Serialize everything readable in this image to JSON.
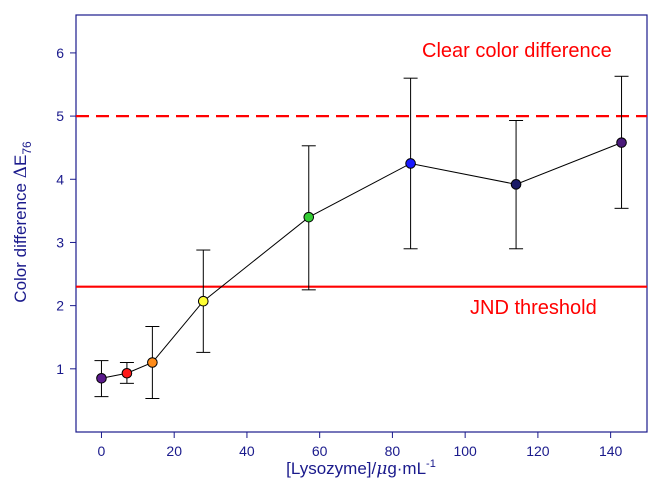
{
  "chart_data": {
    "type": "scatter",
    "xlabel": {
      "main": "[Lysozyme]/",
      "mu": "μ",
      "rest": "g·mL",
      "sup": "-1"
    },
    "ylabel": {
      "main": "Color difference ",
      "delta": "Δ",
      "E": "E",
      "sub": "76"
    },
    "xlim": [
      -7,
      150
    ],
    "ylim": [
      0,
      6.6
    ],
    "x_ticks": [
      0,
      20,
      40,
      60,
      80,
      100,
      120,
      140
    ],
    "y_ticks": [
      1,
      2,
      3,
      4,
      5,
      6
    ],
    "grid": false,
    "axis_color": "#1a1a8c",
    "series": [
      {
        "points": [
          {
            "x": 0,
            "y": 0.85,
            "err_low": 0.56,
            "err_high": 1.13,
            "color": "#5b1a8c"
          },
          {
            "x": 7,
            "y": 0.93,
            "err_low": 0.77,
            "err_high": 1.1,
            "color": "#ff1a1a"
          },
          {
            "x": 14,
            "y": 1.1,
            "err_low": 0.53,
            "err_high": 1.67,
            "color": "#ff8c1a"
          },
          {
            "x": 28,
            "y": 2.07,
            "err_low": 1.26,
            "err_high": 2.88,
            "color": "#ffff33"
          },
          {
            "x": 57,
            "y": 3.4,
            "err_low": 2.25,
            "err_high": 4.53,
            "color": "#33cc33"
          },
          {
            "x": 85,
            "y": 4.25,
            "err_low": 2.9,
            "err_high": 5.6,
            "color": "#1a1aff"
          },
          {
            "x": 114,
            "y": 3.92,
            "err_low": 2.9,
            "err_high": 4.93,
            "color": "#1a1a66"
          },
          {
            "x": 143,
            "y": 4.58,
            "err_low": 3.54,
            "err_high": 5.63,
            "color": "#4b1a7a"
          }
        ]
      }
    ],
    "reference_lines": [
      {
        "y": 5.0,
        "style": "dashed",
        "color": "#ff0000",
        "label": "Clear color difference"
      },
      {
        "y": 2.3,
        "style": "solid",
        "color": "#ff0000",
        "label": "JND threshold"
      }
    ]
  }
}
